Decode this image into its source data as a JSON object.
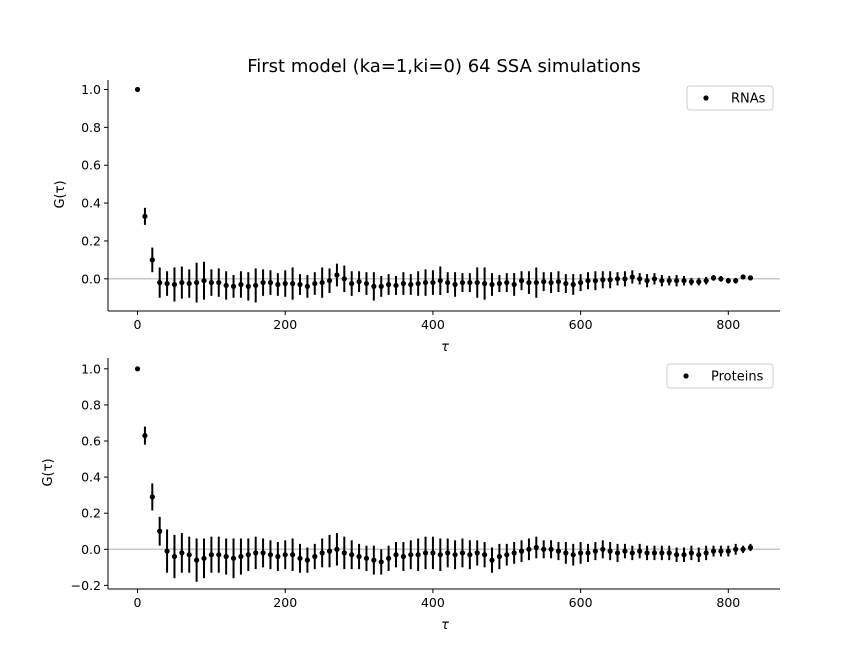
{
  "chart_data": {
    "title": "First model (ka=1,ki=0) 64 SSA simulations",
    "panels": [
      {
        "type": "scatter",
        "error_bars": true,
        "xlabel": "τ",
        "ylabel": "G(τ)",
        "legend": "RNAs",
        "legend_position": "top-right",
        "xlim": [
          -40,
          870
        ],
        "ylim": [
          -0.17,
          1.05
        ],
        "xticks": [
          0,
          200,
          400,
          600,
          800
        ],
        "yticks": [
          0.0,
          0.2,
          0.4,
          0.6,
          0.8,
          1.0
        ],
        "ytick_labels": [
          "0.0",
          "0.2",
          "0.4",
          "0.6",
          "0.8",
          "1.0"
        ],
        "reference_line_y": 0,
        "x": [
          0,
          10,
          20,
          30,
          40,
          50,
          60,
          70,
          80,
          90,
          100,
          110,
          120,
          130,
          140,
          150,
          160,
          170,
          180,
          190,
          200,
          210,
          220,
          230,
          240,
          250,
          260,
          270,
          280,
          290,
          300,
          310,
          320,
          330,
          340,
          350,
          360,
          370,
          380,
          390,
          400,
          410,
          420,
          430,
          440,
          450,
          460,
          470,
          480,
          490,
          500,
          510,
          520,
          530,
          540,
          550,
          560,
          570,
          580,
          590,
          600,
          610,
          620,
          630,
          640,
          650,
          660,
          670,
          680,
          690,
          700,
          710,
          720,
          730,
          740,
          750,
          760,
          770,
          780,
          790,
          800,
          810,
          820,
          830
        ],
        "y": [
          1.0,
          0.33,
          0.1,
          -0.02,
          -0.025,
          -0.03,
          -0.02,
          -0.025,
          -0.02,
          -0.01,
          -0.02,
          -0.02,
          -0.035,
          -0.04,
          -0.03,
          -0.04,
          -0.035,
          -0.02,
          -0.02,
          -0.03,
          -0.025,
          -0.025,
          -0.03,
          -0.04,
          -0.025,
          -0.02,
          -0.01,
          0.02,
          0.0,
          -0.025,
          -0.015,
          -0.025,
          -0.04,
          -0.04,
          -0.03,
          -0.035,
          -0.025,
          -0.03,
          -0.025,
          -0.02,
          -0.02,
          -0.01,
          -0.02,
          -0.03,
          -0.02,
          -0.02,
          -0.02,
          -0.025,
          -0.03,
          -0.025,
          -0.02,
          -0.03,
          -0.01,
          -0.02,
          -0.02,
          -0.015,
          -0.02,
          -0.015,
          -0.025,
          -0.03,
          -0.02,
          -0.01,
          -0.01,
          -0.005,
          -0.005,
          0.0,
          0.0,
          0.01,
          0.0,
          -0.01,
          0.0,
          -0.01,
          -0.01,
          -0.01,
          -0.01,
          -0.015,
          -0.015,
          -0.01,
          0.005,
          0.0,
          -0.01,
          -0.01,
          0.01,
          0.005
        ],
        "err": [
          0,
          0.045,
          0.065,
          0.08,
          0.065,
          0.09,
          0.085,
          0.075,
          0.105,
          0.1,
          0.07,
          0.075,
          0.075,
          0.06,
          0.07,
          0.075,
          0.09,
          0.07,
          0.065,
          0.06,
          0.07,
          0.085,
          0.055,
          0.06,
          0.06,
          0.08,
          0.065,
          0.06,
          0.07,
          0.065,
          0.055,
          0.06,
          0.075,
          0.055,
          0.055,
          0.05,
          0.06,
          0.055,
          0.065,
          0.07,
          0.065,
          0.075,
          0.055,
          0.065,
          0.05,
          0.05,
          0.08,
          0.085,
          0.06,
          0.045,
          0.05,
          0.06,
          0.05,
          0.06,
          0.08,
          0.05,
          0.055,
          0.055,
          0.05,
          0.055,
          0.045,
          0.045,
          0.05,
          0.045,
          0.045,
          0.035,
          0.04,
          0.035,
          0.03,
          0.035,
          0.03,
          0.03,
          0.025,
          0.03,
          0.025,
          0.02,
          0.02,
          0.02,
          0.015,
          0.015,
          0.015,
          0.015,
          0.012,
          0.012
        ]
      },
      {
        "type": "scatter",
        "error_bars": true,
        "xlabel": "τ",
        "ylabel": "G(τ)",
        "legend": "Proteins",
        "legend_position": "top-right",
        "xlim": [
          -40,
          870
        ],
        "ylim": [
          -0.22,
          1.06
        ],
        "xticks": [
          0,
          200,
          400,
          600,
          800
        ],
        "yticks": [
          -0.2,
          0.0,
          0.2,
          0.4,
          0.6,
          0.8,
          1.0
        ],
        "ytick_labels": [
          "−0.2",
          "0.0",
          "0.2",
          "0.4",
          "0.6",
          "0.8",
          "1.0"
        ],
        "reference_line_y": 0,
        "x": [
          0,
          10,
          20,
          30,
          40,
          50,
          60,
          70,
          80,
          90,
          100,
          110,
          120,
          130,
          140,
          150,
          160,
          170,
          180,
          190,
          200,
          210,
          220,
          230,
          240,
          250,
          260,
          270,
          280,
          290,
          300,
          310,
          320,
          330,
          340,
          350,
          360,
          370,
          380,
          390,
          400,
          410,
          420,
          430,
          440,
          450,
          460,
          470,
          480,
          490,
          500,
          510,
          520,
          530,
          540,
          550,
          560,
          570,
          580,
          590,
          600,
          610,
          620,
          630,
          640,
          650,
          660,
          670,
          680,
          690,
          700,
          710,
          720,
          730,
          740,
          750,
          760,
          770,
          780,
          790,
          800,
          810,
          820,
          830
        ],
        "y": [
          1.0,
          0.63,
          0.29,
          0.1,
          -0.01,
          -0.04,
          -0.02,
          -0.03,
          -0.06,
          -0.05,
          -0.03,
          -0.03,
          -0.04,
          -0.05,
          -0.04,
          -0.03,
          -0.02,
          -0.02,
          -0.03,
          -0.04,
          -0.03,
          -0.03,
          -0.05,
          -0.06,
          -0.04,
          -0.02,
          -0.01,
          0.0,
          -0.02,
          -0.03,
          -0.04,
          -0.05,
          -0.06,
          -0.07,
          -0.05,
          -0.03,
          -0.04,
          -0.03,
          -0.03,
          -0.02,
          -0.02,
          -0.03,
          -0.02,
          -0.03,
          -0.02,
          -0.03,
          -0.02,
          -0.03,
          -0.06,
          -0.04,
          -0.03,
          -0.02,
          -0.01,
          0.0,
          0.01,
          0.0,
          0.0,
          -0.01,
          -0.02,
          -0.03,
          -0.02,
          -0.02,
          -0.01,
          0.0,
          -0.01,
          -0.02,
          -0.01,
          -0.02,
          -0.01,
          -0.02,
          -0.02,
          -0.02,
          -0.02,
          -0.03,
          -0.03,
          -0.02,
          -0.03,
          -0.02,
          -0.01,
          -0.01,
          -0.01,
          0.0,
          0.0,
          0.01
        ],
        "err": [
          0,
          0.05,
          0.075,
          0.08,
          0.12,
          0.12,
          0.11,
          0.1,
          0.12,
          0.11,
          0.1,
          0.1,
          0.1,
          0.11,
          0.1,
          0.09,
          0.09,
          0.08,
          0.08,
          0.08,
          0.08,
          0.09,
          0.08,
          0.07,
          0.07,
          0.08,
          0.09,
          0.09,
          0.09,
          0.08,
          0.07,
          0.07,
          0.08,
          0.07,
          0.07,
          0.07,
          0.08,
          0.08,
          0.09,
          0.09,
          0.09,
          0.09,
          0.08,
          0.08,
          0.08,
          0.08,
          0.07,
          0.07,
          0.07,
          0.07,
          0.06,
          0.06,
          0.06,
          0.06,
          0.06,
          0.05,
          0.05,
          0.05,
          0.06,
          0.06,
          0.06,
          0.05,
          0.05,
          0.05,
          0.05,
          0.05,
          0.04,
          0.04,
          0.04,
          0.04,
          0.04,
          0.04,
          0.04,
          0.04,
          0.04,
          0.04,
          0.04,
          0.04,
          0.03,
          0.03,
          0.03,
          0.03,
          0.02,
          0.02
        ]
      }
    ]
  },
  "colors": {
    "points": "#000000",
    "axes": "#000000",
    "reference_line": "#c8c8c8",
    "legend_border": "#cccccc"
  }
}
